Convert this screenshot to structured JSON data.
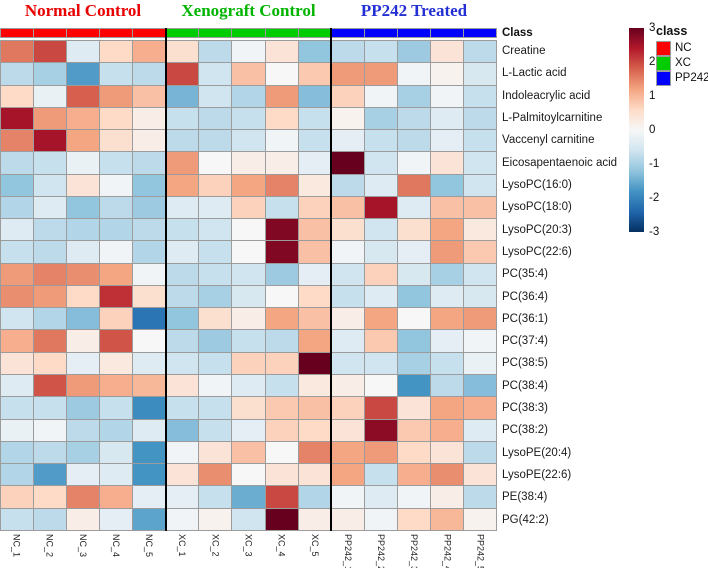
{
  "figure": {
    "class_row_label": "Class",
    "groups": [
      {
        "label": "Normal Control",
        "title_color": "#e80000",
        "bar_color": "#fe0000",
        "n_cols": 5
      },
      {
        "label": "Xenograft Control",
        "title_color": "#00b400",
        "bar_color": "#00cc00",
        "n_cols": 5
      },
      {
        "label": "PP242 Treated",
        "title_color": "#2430d4",
        "bar_color": "#0000fe",
        "n_cols": 5
      }
    ]
  },
  "chart_data": {
    "type": "heatmap",
    "title": "",
    "columns": [
      "NC_1",
      "NC_2",
      "NC_3",
      "NC_4",
      "NC_5",
      "XC_1",
      "XC_2",
      "XC_3",
      "XC_4",
      "XC_5",
      "PP242_1",
      "PP242_2",
      "PP242_3",
      "PP242_4",
      "PP242_5"
    ],
    "rows": [
      "Creatine",
      "L-Lactic acid",
      "Indoleacrylic acid",
      "L-Palmitoylcarnitine",
      "Vaccenyl carnitine",
      "Eicosapentaenoic acid",
      "LysoPC(16:0)",
      "LysoPC(18:0)",
      "LysoPC(20:3)",
      "LysoPC(22:6)",
      "PC(35:4)",
      "PC(36:4)",
      "PC(36:1)",
      "PC(37:4)",
      "PC(38:5)",
      "PC(38:4)",
      "PC(38:3)",
      "PC(38:2)",
      "LysoPE(20:4)",
      "LysoPE(22:6)",
      "PE(38:4)",
      "PG(42:2)"
    ],
    "values": [
      [
        1.6,
        2.0,
        -0.4,
        0.6,
        1.1,
        0.5,
        -0.8,
        -0.1,
        0.4,
        -1.2,
        -0.8,
        -0.7,
        -1.1,
        0.4,
        -0.8
      ],
      [
        -0.8,
        -1.0,
        -1.7,
        -0.7,
        -0.8,
        2.0,
        -0.6,
        0.9,
        0.0,
        0.8,
        1.3,
        1.3,
        -0.1,
        0.1,
        -0.5
      ],
      [
        0.6,
        -0.2,
        1.8,
        1.3,
        0.9,
        -1.4,
        -0.6,
        -0.9,
        1.3,
        -1.3,
        0.7,
        -0.1,
        -1.0,
        -0.1,
        -0.7
      ],
      [
        2.5,
        1.3,
        1.1,
        0.6,
        0.2,
        -0.7,
        -0.8,
        -0.7,
        0.6,
        -0.7,
        0.1,
        -1.0,
        -0.8,
        -0.4,
        -0.8
      ],
      [
        1.5,
        2.5,
        1.2,
        0.5,
        0.2,
        -0.8,
        -0.8,
        -0.6,
        -0.1,
        -0.7,
        -0.3,
        -0.7,
        -0.8,
        -0.3,
        -0.7
      ],
      [
        -0.8,
        -0.7,
        -0.2,
        -0.7,
        -0.8,
        1.3,
        0.0,
        0.2,
        0.2,
        -0.3,
        3.0,
        -0.6,
        -0.1,
        0.4,
        -0.6
      ],
      [
        -1.2,
        -0.6,
        0.4,
        -0.1,
        -1.2,
        1.2,
        0.7,
        1.2,
        1.5,
        0.3,
        -0.8,
        -0.4,
        1.6,
        -1.2,
        -0.6
      ],
      [
        -0.9,
        -0.4,
        -1.2,
        -0.8,
        -1.1,
        -0.4,
        -0.4,
        0.7,
        -0.7,
        0.7,
        0.9,
        2.5,
        -0.4,
        0.9,
        0.9
      ],
      [
        -0.4,
        -0.8,
        -0.9,
        -0.9,
        -0.8,
        -0.7,
        -0.6,
        0.0,
        2.8,
        0.9,
        0.5,
        -0.6,
        0.5,
        1.2,
        0.3
      ],
      [
        -0.7,
        -0.8,
        -0.4,
        -0.1,
        -0.9,
        -0.4,
        -0.7,
        0.0,
        2.8,
        0.9,
        -0.1,
        -0.5,
        -0.3,
        1.3,
        0.8
      ],
      [
        1.3,
        1.5,
        1.4,
        1.2,
        -0.1,
        -0.8,
        -0.7,
        -0.6,
        -1.1,
        -0.3,
        -0.6,
        0.7,
        -0.5,
        -1.0,
        -0.6
      ],
      [
        1.4,
        1.3,
        0.6,
        2.2,
        0.5,
        -0.8,
        -1.0,
        -0.5,
        0.0,
        0.6,
        -0.7,
        -0.4,
        -1.2,
        -0.4,
        -0.5
      ],
      [
        -0.6,
        -0.9,
        -1.3,
        0.7,
        -2.2,
        -1.2,
        0.5,
        0.2,
        1.2,
        0.9,
        0.2,
        1.2,
        0.0,
        1.2,
        1.3
      ],
      [
        1.1,
        1.6,
        0.2,
        1.9,
        0.0,
        -0.8,
        -1.1,
        -0.7,
        -0.8,
        1.2,
        -0.4,
        0.8,
        -1.2,
        -0.3,
        -0.1
      ],
      [
        0.4,
        0.6,
        -0.3,
        0.3,
        -0.4,
        -0.6,
        -0.7,
        0.7,
        0.7,
        3.0,
        -0.6,
        -0.6,
        -1.0,
        -0.7,
        -0.2
      ],
      [
        -0.4,
        1.9,
        1.3,
        1.1,
        1.0,
        0.4,
        -0.1,
        -0.4,
        -0.7,
        0.3,
        0.2,
        0.0,
        -1.8,
        -0.8,
        -1.3
      ],
      [
        -0.7,
        -0.7,
        -1.1,
        -0.7,
        -1.9,
        -0.7,
        -0.7,
        0.5,
        0.8,
        0.9,
        0.7,
        2.0,
        0.4,
        1.2,
        1.1
      ],
      [
        -0.2,
        -0.1,
        -0.8,
        -0.9,
        -0.4,
        -1.3,
        -0.7,
        -0.3,
        0.7,
        0.6,
        0.4,
        2.7,
        0.8,
        1.1,
        -0.4
      ],
      [
        -0.9,
        -0.8,
        -1.0,
        -0.5,
        -1.8,
        -0.1,
        0.4,
        0.9,
        0.0,
        1.5,
        1.2,
        1.3,
        0.6,
        0.4,
        -0.8
      ],
      [
        -0.9,
        -1.7,
        -0.3,
        -0.4,
        -1.8,
        0.4,
        1.4,
        0.0,
        0.4,
        0.4,
        1.2,
        -0.7,
        1.1,
        1.4,
        0.4
      ],
      [
        0.7,
        0.6,
        1.5,
        1.1,
        -0.3,
        -0.3,
        -0.7,
        -1.5,
        2.0,
        -0.9,
        -0.1,
        -0.4,
        -0.1,
        0.2,
        -0.8
      ],
      [
        -0.7,
        -0.8,
        0.2,
        -0.3,
        -1.6,
        -0.1,
        0.1,
        -0.6,
        3.0,
        0.2,
        0.2,
        -0.1,
        0.6,
        1.0,
        0.1
      ]
    ],
    "value_range": [
      -3,
      3
    ],
    "colorbar_ticks": [
      3,
      2,
      1,
      0,
      -1,
      -2,
      -3
    ],
    "scale_stops": [
      {
        "value": 3.0,
        "color": "#67001f"
      },
      {
        "value": 2.4,
        "color": "#b2182b"
      },
      {
        "value": 1.8,
        "color": "#d6604d"
      },
      {
        "value": 1.2,
        "color": "#f4a582"
      },
      {
        "value": 0.6,
        "color": "#fddbc7"
      },
      {
        "value": 0.0,
        "color": "#f7f7f7"
      },
      {
        "value": -0.6,
        "color": "#d1e5f0"
      },
      {
        "value": -1.2,
        "color": "#92c5de"
      },
      {
        "value": -1.8,
        "color": "#4393c3"
      },
      {
        "value": -2.4,
        "color": "#2166ac"
      },
      {
        "value": -3.0,
        "color": "#053061"
      }
    ],
    "class_legend": {
      "title": "class",
      "items": [
        {
          "label": "NC",
          "color": "#fe0000"
        },
        {
          "label": "XC",
          "color": "#00cc00"
        },
        {
          "label": "PP242",
          "color": "#0000fe"
        }
      ]
    }
  }
}
